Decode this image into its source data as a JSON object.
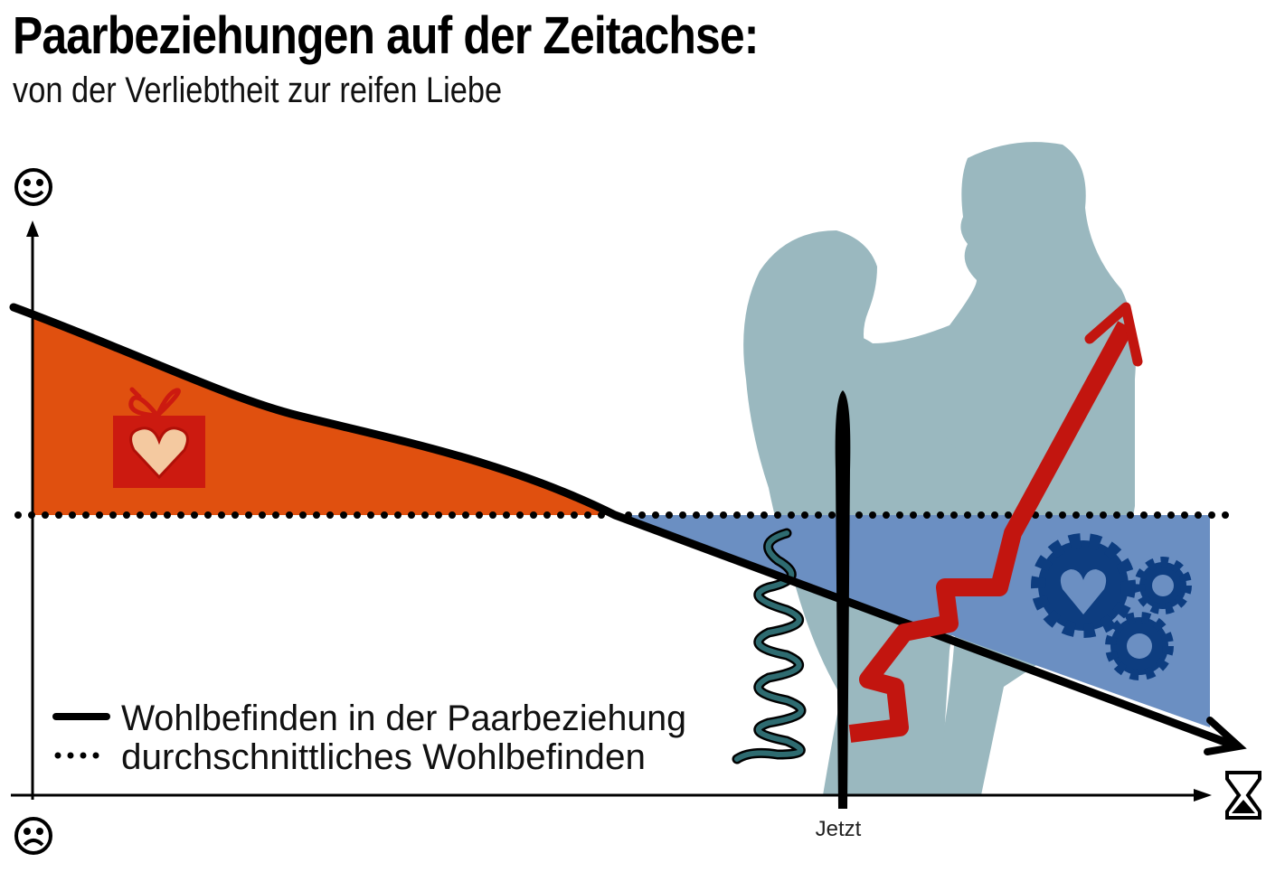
{
  "title": "Paarbeziehungen auf der Zeitachse:",
  "subtitle": "von der Verliebtheit zur reifen Liebe",
  "y_axis": {
    "top_icon": "smiley-icon",
    "bottom_icon": "frown-icon"
  },
  "x_axis": {
    "end_icon": "hourglass-icon",
    "marker_label": "Jetzt"
  },
  "legend": [
    {
      "style": "solid",
      "label": "Wohlbefinden in der Paarbeziehung"
    },
    {
      "style": "dotted",
      "label": "durchschnittliches Wohlbefinden"
    }
  ],
  "colors": {
    "above_average": "#e0500f",
    "below_average": "#6b8fc2",
    "silhouette": "#9ab8bf",
    "red_arrow": "#c2150f",
    "gears": "#0d3d80",
    "spring": "#2e6b70",
    "gift": "#cc1a10"
  },
  "icons": [
    "gift-heart-icon",
    "gears-heart-icon",
    "spring-icon",
    "couple-silhouette",
    "zigzag-arrow-icon"
  ]
}
